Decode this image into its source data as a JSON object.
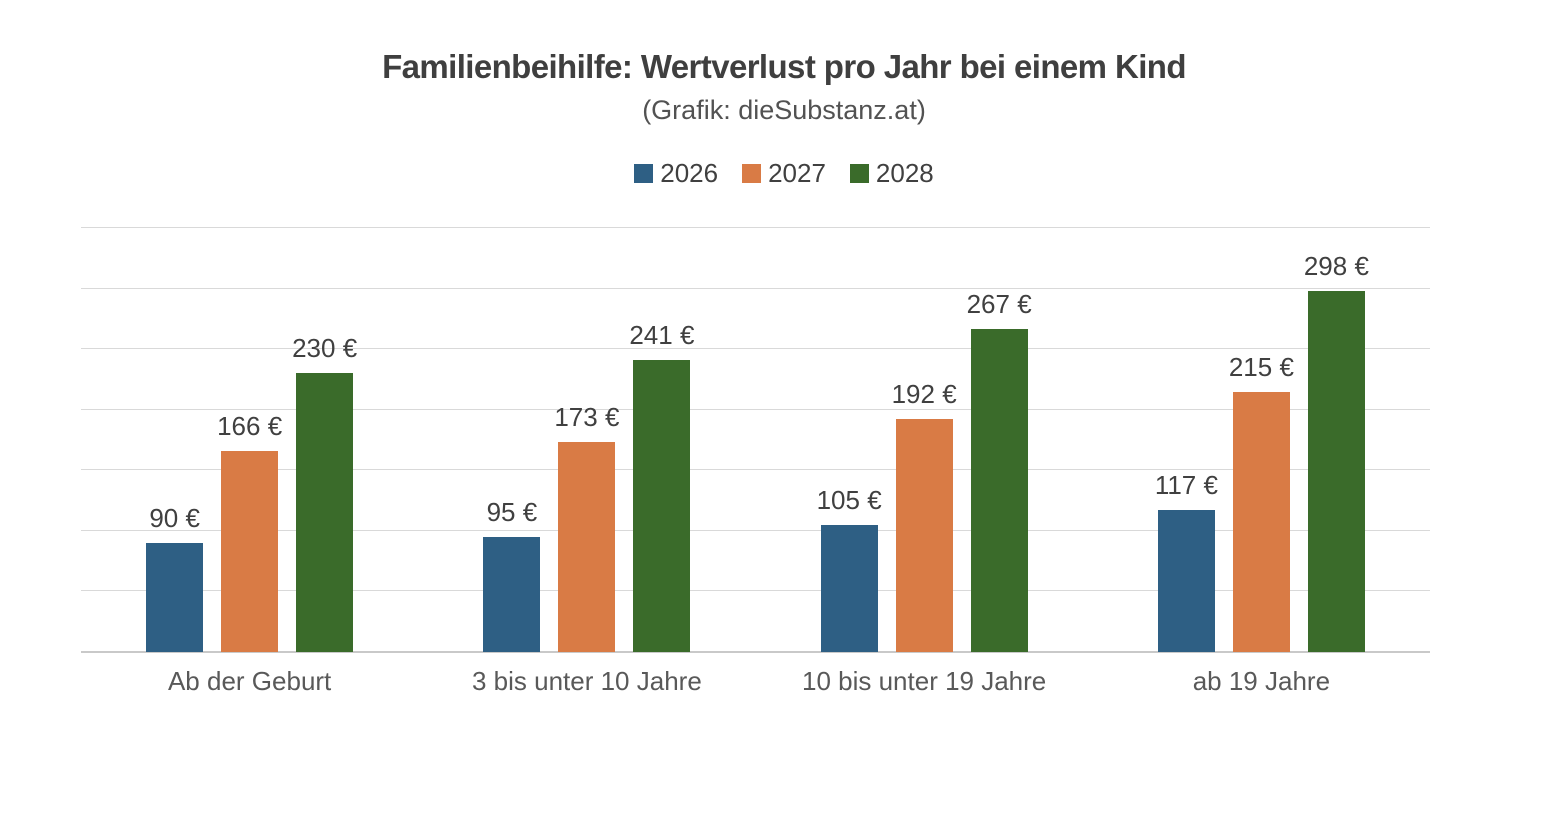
{
  "chart_data": {
    "type": "bar",
    "title": "Familienbeihilfe: Wertverlust pro Jahr bei einem Kind",
    "subtitle": "(Grafik: dieSubstanz.at)",
    "categories": [
      "Ab der Geburt",
      "3 bis unter 10 Jahre",
      "10 bis unter 19 Jahre",
      "ab 19 Jahre"
    ],
    "series": [
      {
        "name": "2026",
        "color": "#2E5F84",
        "values": [
          90,
          95,
          105,
          117
        ]
      },
      {
        "name": "2027",
        "color": "#D97B45",
        "values": [
          166,
          173,
          192,
          215
        ]
      },
      {
        "name": "2028",
        "color": "#3A6B2A",
        "values": [
          230,
          241,
          267,
          298
        ]
      }
    ],
    "value_suffix": " €",
    "ylim": [
      0,
      350
    ],
    "grid_step": 50,
    "grid": true,
    "legend_position": "top",
    "y_axis_labels_visible": false,
    "colors": {
      "title_text": "#3F3F3F",
      "subtitle_text": "#525252",
      "legend_text": "#404040",
      "value_label_text": "#404040",
      "category_text": "#595959",
      "gridline": "#D9D9D9",
      "axis_line": "#C9C9C9",
      "background": "#FFFFFF"
    }
  }
}
